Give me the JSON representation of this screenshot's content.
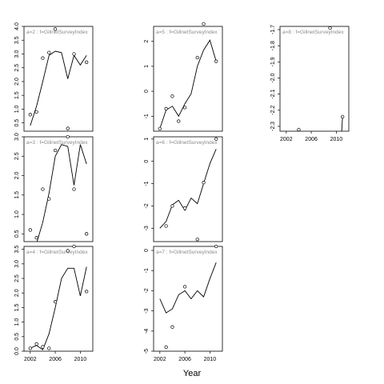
{
  "chart_data": {
    "type": "line",
    "xlabel": "Year",
    "panels": [
      {
        "label": "a=2  :  f=GillnetSurveyIndex",
        "xlim": [
          2001,
          2012
        ],
        "ylim": [
          0.2,
          4.0
        ],
        "yticks": [
          0.5,
          1.0,
          1.5,
          2.0,
          2.5,
          3.0,
          3.5,
          4.0
        ],
        "yticklabels": [
          "0.5",
          "1.0",
          "1.5",
          "2.0",
          "2.5",
          "3.0",
          "3.5",
          "4.0"
        ],
        "show_xticks": false,
        "points": [
          [
            2002,
            0.8
          ],
          [
            2003,
            0.9
          ],
          [
            2004,
            2.85
          ],
          [
            2005,
            3.05
          ],
          [
            2006,
            3.9
          ],
          [
            2008,
            0.3
          ],
          [
            2009,
            3.0
          ],
          [
            2011,
            2.7
          ]
        ],
        "line": [
          [
            2002,
            0.4
          ],
          [
            2003,
            1.1
          ],
          [
            2004,
            2.0
          ],
          [
            2005,
            2.95
          ],
          [
            2006,
            3.1
          ],
          [
            2007,
            3.05
          ],
          [
            2008,
            2.1
          ],
          [
            2009,
            2.95
          ],
          [
            2010,
            2.6
          ],
          [
            2011,
            2.95
          ]
        ]
      },
      {
        "label": "a=5  :  f=GillnetSurveyIndex",
        "xlim": [
          2001,
          2012
        ],
        "ylim": [
          -1.6,
          2.6
        ],
        "yticks": [
          -1,
          0,
          1,
          2
        ],
        "yticklabels": [
          "-1",
          "0",
          "1",
          "2"
        ],
        "show_xticks": false,
        "points": [
          [
            2002,
            -1.5
          ],
          [
            2003,
            -0.7
          ],
          [
            2004,
            -0.2
          ],
          [
            2005,
            -1.2
          ],
          [
            2006,
            -0.65
          ],
          [
            2008,
            1.35
          ],
          [
            2009,
            2.7
          ],
          [
            2011,
            1.2
          ]
        ],
        "line": [
          [
            2002,
            -1.5
          ],
          [
            2003,
            -0.75
          ],
          [
            2004,
            -0.6
          ],
          [
            2005,
            -1.0
          ],
          [
            2006,
            -0.5
          ],
          [
            2007,
            -0.1
          ],
          [
            2008,
            1.0
          ],
          [
            2009,
            1.65
          ],
          [
            2010,
            2.05
          ],
          [
            2011,
            1.2
          ]
        ]
      },
      {
        "label": "a=8  :  f=GillnetSurveyIndex",
        "xlim": [
          2001,
          2012
        ],
        "ylim": [
          -2.33,
          -1.68
        ],
        "yticks": [
          -2.3,
          -2.2,
          -2.1,
          -2.0,
          -1.9,
          -1.8,
          -1.7
        ],
        "yticklabels": [
          "-2.3",
          "-2.2",
          "-2.1",
          "-2.0",
          "-1.9",
          "-1.8",
          "-1.7"
        ],
        "show_xticks": true,
        "points": [
          [
            2004,
            -2.32
          ],
          [
            2009,
            -1.69
          ],
          [
            2011,
            -2.24
          ]
        ],
        "line": [
          [
            2010.85,
            -2.34
          ],
          [
            2011,
            -2.24
          ]
        ]
      },
      {
        "label": "a=3  :  f=GillnetSurveyIndex",
        "xlim": [
          2001,
          2012
        ],
        "ylim": [
          0.3,
          3.0
        ],
        "yticks": [
          0.5,
          1.0,
          1.5,
          2.0,
          2.5,
          3.0
        ],
        "yticklabels": [
          "0.5",
          "1.0",
          "1.5",
          "2.0",
          "2.5",
          "3.0"
        ],
        "show_xticks": false,
        "points": [
          [
            2002,
            0.6
          ],
          [
            2003,
            0.4
          ],
          [
            2004,
            1.65
          ],
          [
            2005,
            1.4
          ],
          [
            2006,
            2.65
          ],
          [
            2008,
            3.0
          ],
          [
            2009,
            1.65
          ],
          [
            2011,
            0.5
          ]
        ],
        "line": [
          [
            2003,
            0.25
          ],
          [
            2004,
            0.8
          ],
          [
            2005,
            1.55
          ],
          [
            2006,
            2.5
          ],
          [
            2007,
            2.8
          ],
          [
            2008,
            2.75
          ],
          [
            2009,
            1.75
          ],
          [
            2010,
            2.8
          ],
          [
            2011,
            2.3
          ]
        ]
      },
      {
        "label": "a=6  :  f=GillnetSurveyIndex",
        "xlim": [
          2001,
          2012
        ],
        "ylim": [
          -3.6,
          1.1
        ],
        "yticks": [
          -3,
          -2,
          -1,
          0,
          1
        ],
        "yticklabels": [
          "-3",
          "-2",
          "-1",
          "0",
          "1"
        ],
        "show_xticks": false,
        "points": [
          [
            2003,
            -2.9
          ],
          [
            2004,
            -2.0
          ],
          [
            2006,
            -2.1
          ],
          [
            2008,
            -3.5
          ],
          [
            2009,
            -0.95
          ],
          [
            2011,
            1.0
          ]
        ],
        "line": [
          [
            2002,
            -3.0
          ],
          [
            2003,
            -2.7
          ],
          [
            2004,
            -1.95
          ],
          [
            2005,
            -1.75
          ],
          [
            2006,
            -2.2
          ],
          [
            2007,
            -1.65
          ],
          [
            2008,
            -1.9
          ],
          [
            2009,
            -1.0
          ],
          [
            2010,
            -0.1
          ],
          [
            2011,
            0.55
          ]
        ]
      },
      {
        "label": "a=4  :  f=GillnetSurveyIndex",
        "xlim": [
          2001,
          2012
        ],
        "ylim": [
          0.0,
          3.6
        ],
        "yticks": [
          0.0,
          0.5,
          1.0,
          1.5,
          2.0,
          2.5,
          3.0,
          3.5
        ],
        "yticklabels": [
          "0.0",
          "0.5",
          "1.0",
          "1.5",
          "2.0",
          "2.5",
          "3.0",
          "3.5"
        ],
        "show_xticks": true,
        "points": [
          [
            2002,
            0.1
          ],
          [
            2003,
            0.25
          ],
          [
            2004,
            0.15
          ],
          [
            2005,
            0.1
          ],
          [
            2006,
            1.7
          ],
          [
            2008,
            3.45
          ],
          [
            2009,
            3.6
          ],
          [
            2011,
            2.05
          ]
        ],
        "line": [
          [
            2002,
            0.1
          ],
          [
            2003,
            0.2
          ],
          [
            2004,
            0.05
          ],
          [
            2005,
            0.6
          ],
          [
            2006,
            1.5
          ],
          [
            2007,
            2.5
          ],
          [
            2008,
            2.85
          ],
          [
            2009,
            2.85
          ],
          [
            2010,
            1.9
          ],
          [
            2011,
            2.9
          ]
        ]
      },
      {
        "label": "a=7  :  f=GillnetSurveyIndex",
        "xlim": [
          2001,
          2012
        ],
        "ylim": [
          -5.0,
          0.2
        ],
        "yticks": [
          -5,
          -4,
          -3,
          -2,
          -1,
          0
        ],
        "yticklabels": [
          "-5",
          "-4",
          "-3",
          "-2",
          "-1",
          "0"
        ],
        "show_xticks": true,
        "points": [
          [
            2003,
            -4.8
          ],
          [
            2004,
            -3.8
          ],
          [
            2006,
            -1.8
          ],
          [
            2011,
            0.2
          ]
        ],
        "line": [
          [
            2002,
            -2.4
          ],
          [
            2003,
            -3.1
          ],
          [
            2004,
            -2.9
          ],
          [
            2005,
            -2.2
          ],
          [
            2006,
            -2.0
          ],
          [
            2007,
            -2.4
          ],
          [
            2008,
            -2.0
          ],
          [
            2009,
            -2.3
          ],
          [
            2010,
            -1.4
          ],
          [
            2011,
            -0.6
          ]
        ]
      }
    ],
    "xticks": [
      2002,
      2006,
      2010
    ],
    "xticklabels": [
      "2002",
      "2006",
      "2010"
    ],
    "grid": false,
    "legend": "none"
  }
}
